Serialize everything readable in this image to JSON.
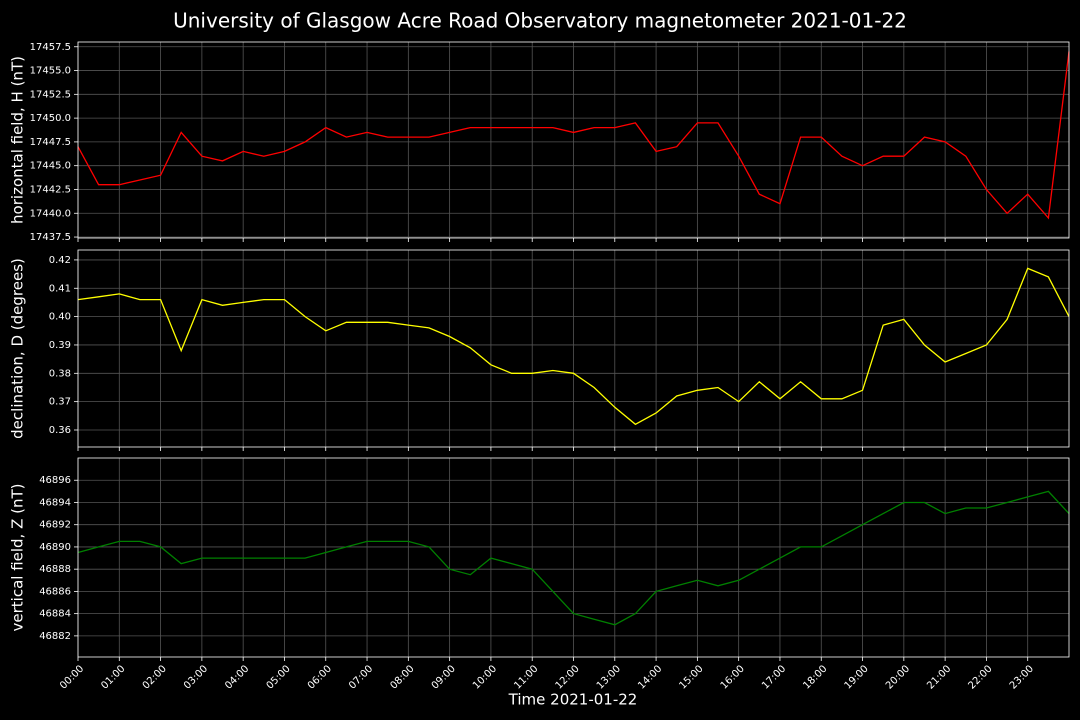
{
  "chart_data": [
    {
      "type": "line",
      "title": "University of Glasgow Acre Road Observatory magnetometer 2021-01-22",
      "ylabel": "horizontal field, H (nT)",
      "color": "#ff0000",
      "x": [
        "00:00",
        "00:30",
        "01:00",
        "01:30",
        "02:00",
        "02:30",
        "03:00",
        "03:30",
        "04:00",
        "04:30",
        "05:00",
        "05:30",
        "06:00",
        "06:30",
        "07:00",
        "07:30",
        "08:00",
        "08:30",
        "09:00",
        "09:30",
        "10:00",
        "10:30",
        "11:00",
        "11:30",
        "12:00",
        "12:30",
        "13:00",
        "13:30",
        "14:00",
        "14:30",
        "15:00",
        "15:30",
        "16:00",
        "16:30",
        "17:00",
        "17:30",
        "18:00",
        "18:30",
        "19:00",
        "19:30",
        "20:00",
        "20:30",
        "21:00",
        "21:30",
        "22:00",
        "22:30",
        "23:00",
        "23:30",
        "24:00"
      ],
      "values": [
        17447,
        17443,
        17443,
        17443.5,
        17444,
        17448.5,
        17446,
        17445.5,
        17446.5,
        17446,
        17446.5,
        17447.5,
        17449,
        17448,
        17448.5,
        17448,
        17448,
        17448,
        17448.5,
        17449,
        17449,
        17449,
        17449,
        17449,
        17448.5,
        17449,
        17449,
        17449.5,
        17446.5,
        17447,
        17449.5,
        17449.5,
        17446,
        17442,
        17441,
        17448,
        17448,
        17446,
        17445,
        17446,
        17446,
        17448,
        17447.5,
        17446,
        17442.5,
        17440,
        17442,
        17439.5,
        17457
      ],
      "xlim": [
        "00:00",
        "24:00"
      ],
      "ylim": [
        17437.4,
        17458.0
      ],
      "yticks": [
        17437.5,
        {
          "value": 17440,
          "label": "17440.0"
        },
        17442.5,
        {
          "value": 17445,
          "label": "17445.0"
        },
        17447.5,
        {
          "value": 17450,
          "label": "17450.0"
        },
        17452.5,
        {
          "value": 17455,
          "label": "17455.0"
        },
        17457.5
      ],
      "grid": true
    },
    {
      "type": "line",
      "ylabel": "declination, D (degrees)",
      "color": "#ffff00",
      "x": [
        "00:00",
        "00:30",
        "01:00",
        "01:30",
        "02:00",
        "02:30",
        "03:00",
        "03:30",
        "04:00",
        "04:30",
        "05:00",
        "05:30",
        "06:00",
        "06:30",
        "07:00",
        "07:30",
        "08:00",
        "08:30",
        "09:00",
        "09:30",
        "10:00",
        "10:30",
        "11:00",
        "11:30",
        "12:00",
        "12:30",
        "13:00",
        "13:30",
        "14:00",
        "14:30",
        "15:00",
        "15:30",
        "16:00",
        "16:30",
        "17:00",
        "17:30",
        "18:00",
        "18:30",
        "19:00",
        "19:30",
        "20:00",
        "20:30",
        "21:00",
        "21:30",
        "22:00",
        "22:30",
        "23:00",
        "23:30",
        "24:00"
      ],
      "values": [
        0.406,
        0.407,
        0.408,
        0.406,
        0.406,
        0.388,
        0.406,
        0.404,
        0.405,
        0.406,
        0.406,
        0.4,
        0.395,
        0.398,
        0.398,
        0.398,
        0.397,
        0.396,
        0.393,
        0.389,
        0.383,
        0.38,
        0.38,
        0.381,
        0.38,
        0.375,
        0.368,
        0.362,
        0.366,
        0.372,
        0.374,
        0.375,
        0.37,
        0.377,
        0.371,
        0.377,
        0.371,
        0.371,
        0.374,
        0.397,
        0.399,
        0.39,
        0.384,
        0.387,
        0.39,
        0.399,
        0.417,
        0.414,
        0.4
      ],
      "xlim": [
        "00:00",
        "24:00"
      ],
      "ylim": [
        0.354,
        0.4235
      ],
      "yticks": [
        0.36,
        0.37,
        0.38,
        0.39,
        {
          "value": 0.4,
          "label": "0.40"
        },
        0.41,
        0.42
      ],
      "grid": true
    },
    {
      "type": "line",
      "ylabel": "vertical field, Z (nT)",
      "xlabel": "Time 2021-01-22",
      "color": "#008000",
      "x": [
        "00:00",
        "00:30",
        "01:00",
        "01:30",
        "02:00",
        "02:30",
        "03:00",
        "03:30",
        "04:00",
        "04:30",
        "05:00",
        "05:30",
        "06:00",
        "06:30",
        "07:00",
        "07:30",
        "08:00",
        "08:30",
        "09:00",
        "09:30",
        "10:00",
        "10:30",
        "11:00",
        "11:30",
        "12:00",
        "12:30",
        "13:00",
        "13:30",
        "14:00",
        "14:30",
        "15:00",
        "15:30",
        "16:00",
        "16:30",
        "17:00",
        "17:30",
        "18:00",
        "18:30",
        "19:00",
        "19:30",
        "20:00",
        "20:30",
        "21:00",
        "21:30",
        "22:00",
        "22:30",
        "23:00",
        "23:30",
        "24:00"
      ],
      "values": [
        46889.5,
        46890,
        46890.5,
        46890.5,
        46890,
        46888.5,
        46889,
        46889,
        46889,
        46889,
        46889,
        46889,
        46889.5,
        46890,
        46890.5,
        46890.5,
        46890.5,
        46890,
        46888,
        46887.5,
        46889,
        46888.5,
        46888,
        46886,
        46884,
        46883.5,
        46883,
        46884,
        46886,
        46886.5,
        46887,
        46886.5,
        46887,
        46888,
        46889,
        46890,
        46890,
        46891,
        46892,
        46893,
        46894,
        46894,
        46893,
        46893.5,
        46893.5,
        46894,
        46894.5,
        46895,
        46893
      ],
      "xlim": [
        "00:00",
        "24:00"
      ],
      "ylim": [
        46880.1,
        46898.0
      ],
      "xticks": [
        "00:00",
        "01:00",
        "02:00",
        "03:00",
        "04:00",
        "05:00",
        "06:00",
        "07:00",
        "08:00",
        "09:00",
        "10:00",
        "11:00",
        "12:00",
        "13:00",
        "14:00",
        "15:00",
        "16:00",
        "17:00",
        "18:00",
        "19:00",
        "20:00",
        "21:00",
        "22:00",
        "23:00"
      ],
      "yticks": [
        46882,
        46884,
        46886,
        46888,
        46890,
        46892,
        46894,
        46896
      ],
      "grid": true
    }
  ]
}
